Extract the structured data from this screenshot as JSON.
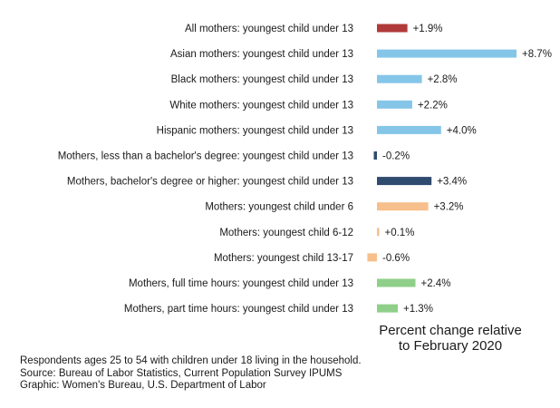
{
  "chart_data": {
    "type": "bar",
    "orientation": "horizontal",
    "categories": [
      "All mothers: youngest child under 13",
      "Asian mothers: youngest child under 13",
      "Black mothers: youngest child under 13",
      "White mothers: youngest child under 13",
      "Hispanic mothers: youngest child under 13",
      "Mothers, less than a bachelor's degree: youngest child under 13",
      "Mothers, bachelor's degree or higher: youngest child under 13",
      "Mothers: youngest child under 6",
      "Mothers: youngest child 6-12",
      "Mothers: youngest child 13-17",
      "Mothers, full time hours: youngest child under 13",
      "Mothers, part time hours: youngest child under 13"
    ],
    "values": [
      1.9,
      8.7,
      2.8,
      2.2,
      4.0,
      -0.2,
      3.4,
      3.2,
      0.1,
      -0.6,
      2.4,
      1.3
    ],
    "value_labels": [
      "+1.9%",
      "+8.7%",
      "+2.8%",
      "+2.2%",
      "+4.0%",
      "-0.2%",
      "+3.4%",
      "+3.2%",
      "+0.1%",
      "-0.6%",
      "+2.4%",
      "+1.3%"
    ],
    "colors": [
      "#b03a3a",
      "#85c6e8",
      "#85c6e8",
      "#85c6e8",
      "#85c6e8",
      "#2f4b6e",
      "#2f4b6e",
      "#f7bf8c",
      "#f7bf8c",
      "#f7bf8c",
      "#8fcf8a",
      "#8fcf8a"
    ],
    "xlabel_lines": [
      "Percent change relative",
      "to February 2020"
    ],
    "xlim": [
      -0.6,
      8.7
    ],
    "grid": false
  },
  "notes": {
    "line1": "Respondents ages 25 to 54 with children under 18 living in the household.",
    "line2": "Source: Bureau of Labor Statistics, Current Population Survey IPUMS",
    "line3": "Graphic: Women's Bureau, U.S. Department of Labor"
  }
}
